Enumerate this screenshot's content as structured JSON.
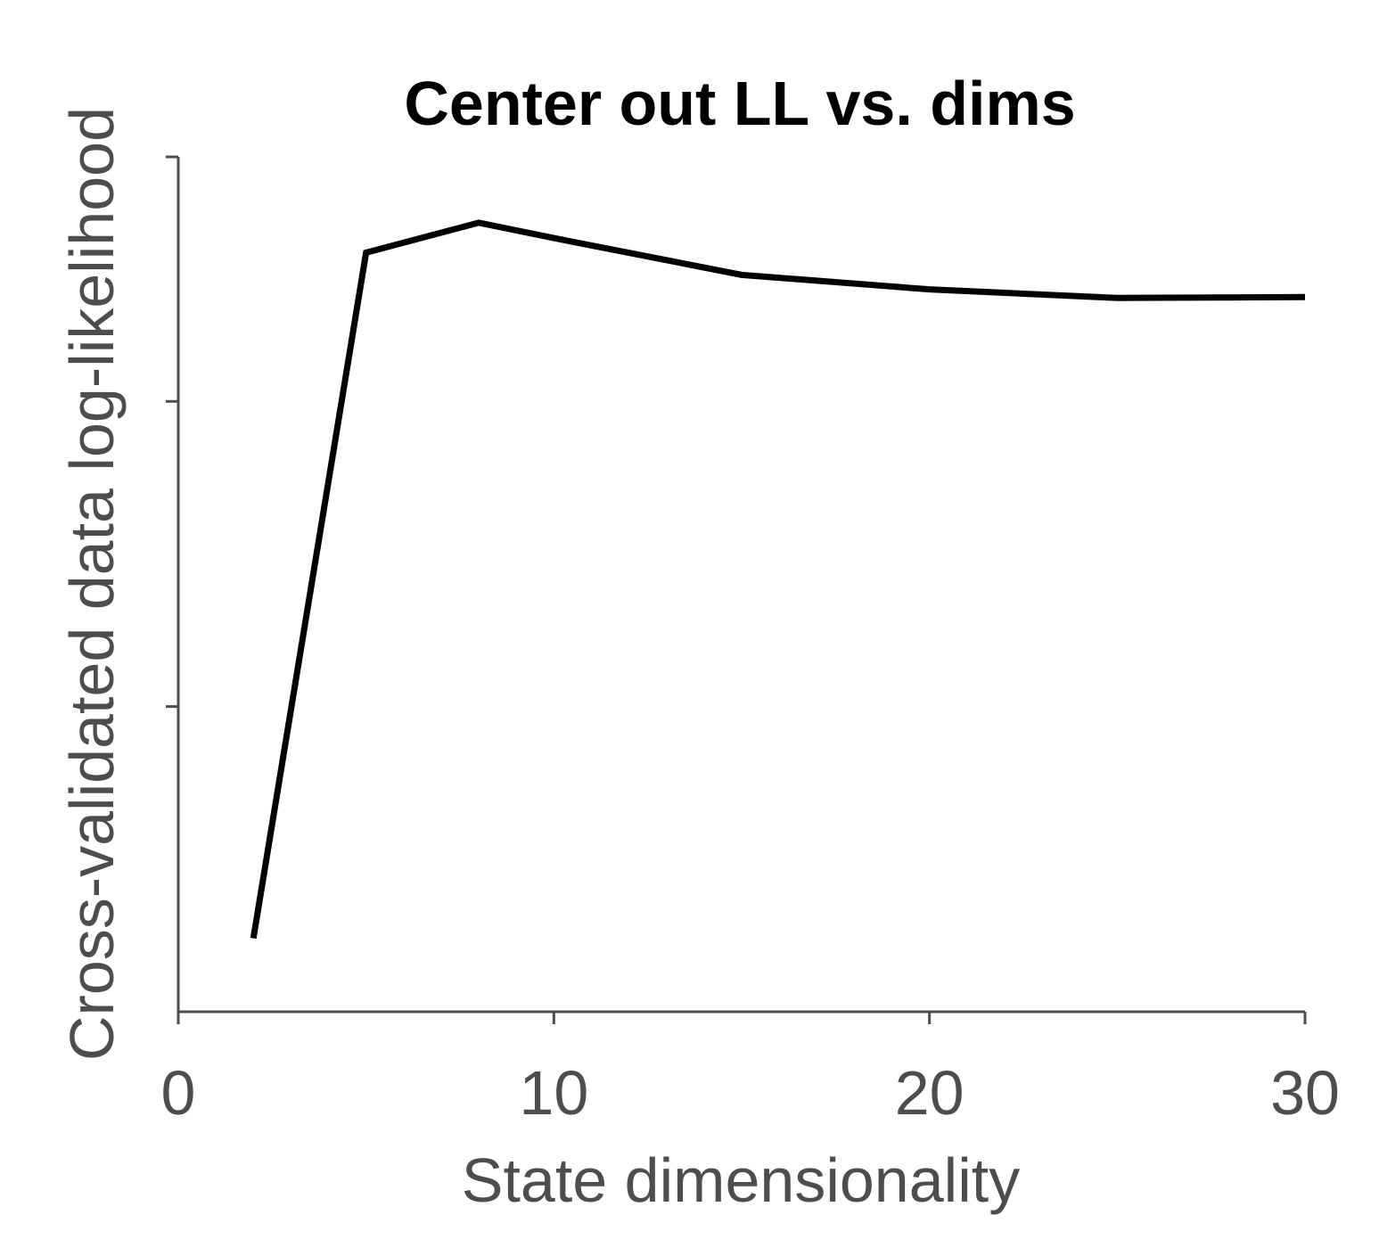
{
  "chart_data": {
    "type": "line",
    "title": "Center out LL vs. dims",
    "xlabel": "State dimensionality",
    "ylabel": "Cross-validated data log-likelihood",
    "xlim": [
      0,
      30
    ],
    "ylim": [
      0,
      1
    ],
    "x_ticks": [
      0,
      10,
      20,
      30
    ],
    "x_tick_labels": [
      "0",
      "10",
      "20",
      "30"
    ],
    "y_ticks": [
      0.357,
      0.714,
      1.0
    ],
    "y_tick_labels": [],
    "grid": false,
    "legend": "none",
    "series": [
      {
        "x": [
          2,
          5,
          8,
          10,
          15,
          20,
          25,
          30
        ],
        "y": [
          0.086,
          0.888,
          0.923,
          0.905,
          0.862,
          0.845,
          0.835,
          0.836
        ],
        "color": "#000000"
      }
    ]
  }
}
